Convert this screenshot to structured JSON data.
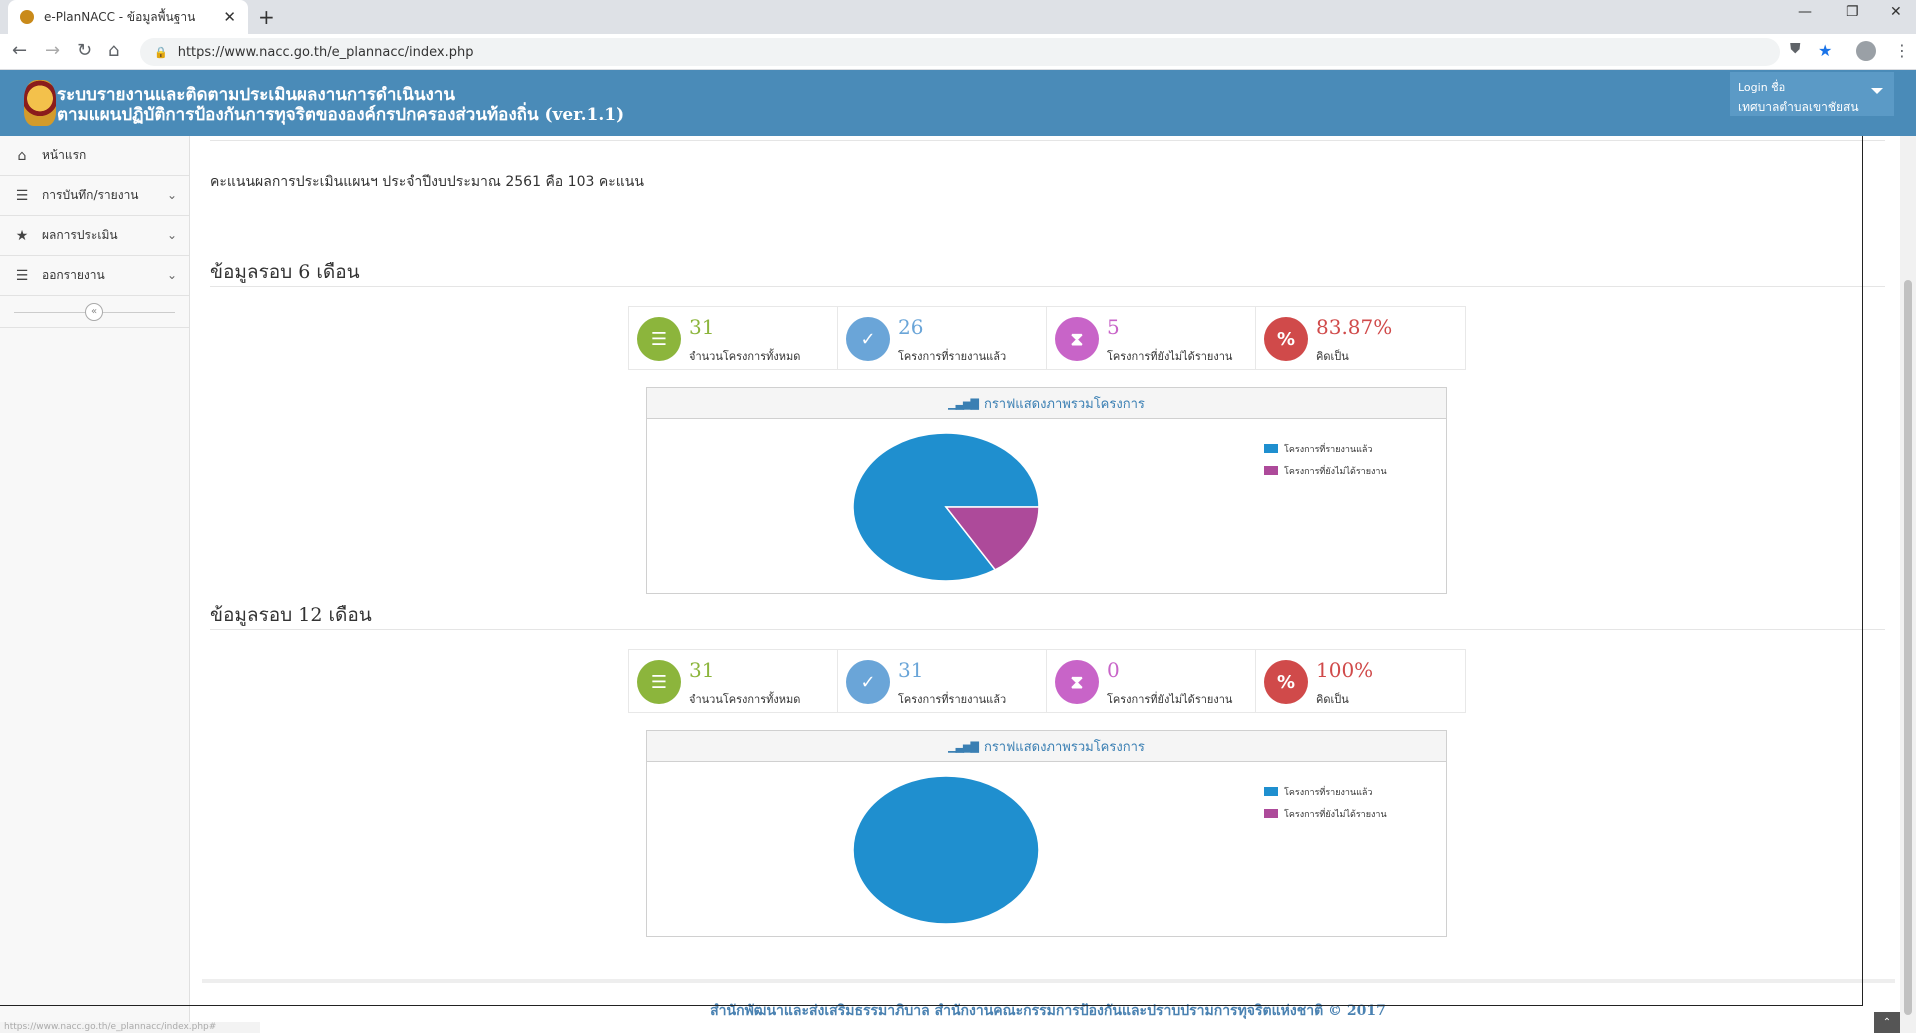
{
  "browser": {
    "tab_title": "e-PlanNACC - ข้อมูลพื้นฐาน",
    "url": "https://www.nacc.go.th/e_plannacc/index.php",
    "status_url": "https://www.nacc.go.th/e_plannacc/index.php#"
  },
  "header": {
    "title_line1": "ระบบรายงานและติดตามประเมินผลงานการดำเนินงาน",
    "title_line2": "ตามแผนปฏิบัติการป้องกันการทุจริตขององค์กรปกครองส่วนท้องถิ่น (ver.1.1)",
    "login_label": "Login ชื่อ",
    "login_name": "เทศบาลตำบลเขาชัยสน"
  },
  "sidebar": {
    "items": [
      {
        "label": "หน้าแรก",
        "icon": "home-icon",
        "has_chevron": false
      },
      {
        "label": "การบันทึก/รายงาน",
        "icon": "list-icon",
        "has_chevron": true
      },
      {
        "label": "ผลการประเมิน",
        "icon": "star-icon",
        "has_chevron": true
      },
      {
        "label": "ออกรายงาน",
        "icon": "list-icon",
        "has_chevron": true
      }
    ],
    "collapse_glyph": "«"
  },
  "main": {
    "score_text": "คะแนนผลการประเมินแผนฯ ประจำปีงบประมาณ 2561 คือ 103 คะแนน",
    "sections": [
      {
        "title": "ข้อมูลรอบ 6 เดือน",
        "stats": [
          {
            "value": "31",
            "label": "จำนวนโครงการทั้งหมด",
            "color": "#8cb53c",
            "icon": "database-icon"
          },
          {
            "value": "26",
            "label": "โครงการที่รายงานแล้ว",
            "color": "#6aa5d8",
            "icon": "check-icon"
          },
          {
            "value": "5",
            "label": "โครงการที่ยังไม่ได้รายงาน",
            "color": "#c864c8",
            "icon": "hourglass-icon"
          },
          {
            "value": "83.87%",
            "label": "คิดเป็น",
            "color": "#d04a4a",
            "icon": "percent-icon"
          }
        ],
        "chart_title": "กราฟแสดงภาพรวมโครงการ"
      },
      {
        "title": "ข้อมูลรอบ 12 เดือน",
        "stats": [
          {
            "value": "31",
            "label": "จำนวนโครงการทั้งหมด",
            "color": "#8cb53c",
            "icon": "database-icon"
          },
          {
            "value": "31",
            "label": "โครงการที่รายงานแล้ว",
            "color": "#6aa5d8",
            "icon": "check-icon"
          },
          {
            "value": "0",
            "label": "โครงการที่ยังไม่ได้รายงาน",
            "color": "#c864c8",
            "icon": "hourglass-icon"
          },
          {
            "value": "100%",
            "label": "คิดเป็น",
            "color": "#d04a4a",
            "icon": "percent-icon"
          }
        ],
        "chart_title": "กราฟแสดงภาพรวมโครงการ"
      }
    ]
  },
  "chart_data": [
    {
      "type": "pie",
      "categories": [
        "โครงการที่รายงานแล้ว",
        "โครงการที่ยังไม่ได้รายงาน"
      ],
      "values": [
        26,
        5
      ],
      "colors": [
        "#1f8fcf",
        "#ad4a9a"
      ],
      "legend_position": "top-right"
    },
    {
      "type": "pie",
      "categories": [
        "โครงการที่รายงานแล้ว",
        "โครงการที่ยังไม่ได้รายงาน"
      ],
      "values": [
        31,
        0
      ],
      "colors": [
        "#1f8fcf",
        "#ad4a9a"
      ],
      "legend_position": "top-right"
    }
  ],
  "footer": {
    "text": "สำนักพัฒนาและส่งเสริมธรรมาภิบาล สำนักงานคณะกรรมการป้องกันและปราบปรามการทุจริตแห่งชาติ © 2017"
  }
}
